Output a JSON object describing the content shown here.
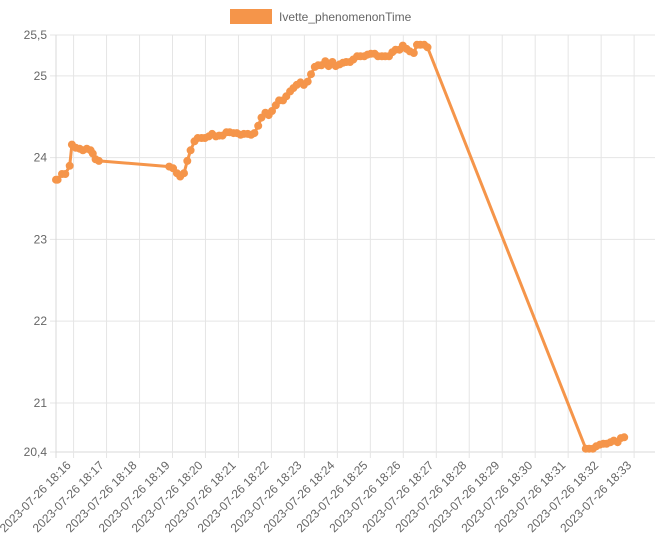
{
  "chart_data": {
    "type": "line",
    "title": "",
    "xlabel": "",
    "ylabel": "",
    "legend": {
      "position": "top-center",
      "entries": [
        "Ivette_phenomenonTime"
      ]
    },
    "grid": true,
    "ylim": [
      20.4,
      25.5
    ],
    "y_ticks": [
      "25,5",
      "25",
      "24",
      "23",
      "22",
      "21",
      "20,4"
    ],
    "y_tick_values": [
      25.5,
      25,
      24,
      23,
      22,
      21,
      20.4
    ],
    "x_ticks": [
      "2023-07-26 18:16",
      "2023-07-26 18:17",
      "2023-07-26 18:18",
      "2023-07-26 18:19",
      "2023-07-26 18:20",
      "2023-07-26 18:21",
      "2023-07-26 18:22",
      "2023-07-26 18:23",
      "2023-07-26 18:24",
      "2023-07-26 18:25",
      "2023-07-26 18:26",
      "2023-07-26 18:27",
      "2023-07-26 18:28",
      "2023-07-26 18:29",
      "2023-07-26 18:30",
      "2023-07-26 18:31",
      "2023-07-26 18:32",
      "2023-07-26 18:33"
    ],
    "xlim": [
      "2023-07-26 18:15:28",
      "2023-07-26 18:33:38"
    ],
    "series": [
      {
        "name": "Ivette_phenomenonTime",
        "color": "#f5954a",
        "points": [
          [
            "2023-07-26 18:15:28",
            23.73
          ],
          [
            "2023-07-26 18:15:31",
            23.73
          ],
          [
            "2023-07-26 18:15:39",
            23.8
          ],
          [
            "2023-07-26 18:15:45",
            23.8
          ],
          [
            "2023-07-26 18:15:53",
            23.9
          ],
          [
            "2023-07-26 18:15:57",
            24.16
          ],
          [
            "2023-07-26 18:16:04",
            24.12
          ],
          [
            "2023-07-26 18:16:11",
            24.11
          ],
          [
            "2023-07-26 18:16:17",
            24.09
          ],
          [
            "2023-07-26 18:16:24",
            24.11
          ],
          [
            "2023-07-26 18:16:31",
            24.09
          ],
          [
            "2023-07-26 18:16:35",
            24.05
          ],
          [
            "2023-07-26 18:16:40",
            23.98
          ],
          [
            "2023-07-26 18:16:46",
            23.96
          ],
          [
            "2023-07-26 18:18:54",
            23.89
          ],
          [
            "2023-07-26 18:19:01",
            23.87
          ],
          [
            "2023-07-26 18:19:08",
            23.81
          ],
          [
            "2023-07-26 18:19:14",
            23.77
          ],
          [
            "2023-07-26 18:19:21",
            23.81
          ],
          [
            "2023-07-26 18:19:27",
            23.96
          ],
          [
            "2023-07-26 18:19:33",
            24.09
          ],
          [
            "2023-07-26 18:19:40",
            24.2
          ],
          [
            "2023-07-26 18:19:46",
            24.24
          ],
          [
            "2023-07-26 18:19:53",
            24.24
          ],
          [
            "2023-07-26 18:19:59",
            24.24
          ],
          [
            "2023-07-26 18:20:06",
            24.26
          ],
          [
            "2023-07-26 18:20:12",
            24.29
          ],
          [
            "2023-07-26 18:20:19",
            24.26
          ],
          [
            "2023-07-26 18:20:25",
            24.27
          ],
          [
            "2023-07-26 18:20:31",
            24.27
          ],
          [
            "2023-07-26 18:20:38",
            24.31
          ],
          [
            "2023-07-26 18:20:44",
            24.31
          ],
          [
            "2023-07-26 18:20:51",
            24.3
          ],
          [
            "2023-07-26 18:20:57",
            24.3
          ],
          [
            "2023-07-26 18:21:04",
            24.28
          ],
          [
            "2023-07-26 18:21:10",
            24.29
          ],
          [
            "2023-07-26 18:21:17",
            24.29
          ],
          [
            "2023-07-26 18:21:23",
            24.28
          ],
          [
            "2023-07-26 18:21:29",
            24.3
          ],
          [
            "2023-07-26 18:21:36",
            24.39
          ],
          [
            "2023-07-26 18:21:42",
            24.49
          ],
          [
            "2023-07-26 18:21:49",
            24.55
          ],
          [
            "2023-07-26 18:21:55",
            24.52
          ],
          [
            "2023-07-26 18:22:01",
            24.57
          ],
          [
            "2023-07-26 18:22:08",
            24.64
          ],
          [
            "2023-07-26 18:22:14",
            24.7
          ],
          [
            "2023-07-26 18:22:21",
            24.7
          ],
          [
            "2023-07-26 18:22:27",
            24.75
          ],
          [
            "2023-07-26 18:22:34",
            24.81
          ],
          [
            "2023-07-26 18:22:40",
            24.85
          ],
          [
            "2023-07-26 18:22:46",
            24.89
          ],
          [
            "2023-07-26 18:22:53",
            24.92
          ],
          [
            "2023-07-26 18:22:59",
            24.89
          ],
          [
            "2023-07-26 18:23:06",
            24.93
          ],
          [
            "2023-07-26 18:23:12",
            25.02
          ],
          [
            "2023-07-26 18:23:19",
            25.11
          ],
          [
            "2023-07-26 18:23:25",
            25.13
          ],
          [
            "2023-07-26 18:23:31",
            25.13
          ],
          [
            "2023-07-26 18:23:38",
            25.18
          ],
          [
            "2023-07-26 18:23:44",
            25.12
          ],
          [
            "2023-07-26 18:23:51",
            25.17
          ],
          [
            "2023-07-26 18:23:57",
            25.12
          ],
          [
            "2023-07-26 18:24:04",
            25.14
          ],
          [
            "2023-07-26 18:24:10",
            25.16
          ],
          [
            "2023-07-26 18:24:16",
            25.17
          ],
          [
            "2023-07-26 18:24:23",
            25.17
          ],
          [
            "2023-07-26 18:24:29",
            25.2
          ],
          [
            "2023-07-26 18:24:36",
            25.24
          ],
          [
            "2023-07-26 18:24:42",
            25.24
          ],
          [
            "2023-07-26 18:24:49",
            25.24
          ],
          [
            "2023-07-26 18:24:55",
            25.26
          ],
          [
            "2023-07-26 18:25:01",
            25.27
          ],
          [
            "2023-07-26 18:25:08",
            25.27
          ],
          [
            "2023-07-26 18:25:14",
            25.24
          ],
          [
            "2023-07-26 18:25:21",
            25.24
          ],
          [
            "2023-07-26 18:25:27",
            25.24
          ],
          [
            "2023-07-26 18:25:34",
            25.24
          ],
          [
            "2023-07-26 18:25:40",
            25.29
          ],
          [
            "2023-07-26 18:25:46",
            25.32
          ],
          [
            "2023-07-26 18:25:53",
            25.32
          ],
          [
            "2023-07-26 18:25:59",
            25.37
          ],
          [
            "2023-07-26 18:26:06",
            25.33
          ],
          [
            "2023-07-26 18:26:12",
            25.3
          ],
          [
            "2023-07-26 18:26:19",
            25.28
          ],
          [
            "2023-07-26 18:26:25",
            25.38
          ],
          [
            "2023-07-26 18:26:31",
            25.38
          ],
          [
            "2023-07-26 18:26:38",
            25.38
          ],
          [
            "2023-07-26 18:26:44",
            25.35
          ],
          [
            "2023-07-26 18:31:32",
            20.44
          ],
          [
            "2023-07-26 18:31:38",
            20.44
          ],
          [
            "2023-07-26 18:31:45",
            20.44
          ],
          [
            "2023-07-26 18:31:51",
            20.47
          ],
          [
            "2023-07-26 18:31:58",
            20.49
          ],
          [
            "2023-07-26 18:32:04",
            20.5
          ],
          [
            "2023-07-26 18:32:10",
            20.5
          ],
          [
            "2023-07-26 18:32:17",
            20.52
          ],
          [
            "2023-07-26 18:32:23",
            20.54
          ],
          [
            "2023-07-26 18:32:30",
            20.52
          ],
          [
            "2023-07-26 18:32:36",
            20.57
          ],
          [
            "2023-07-26 18:32:42",
            20.58
          ]
        ]
      }
    ]
  }
}
